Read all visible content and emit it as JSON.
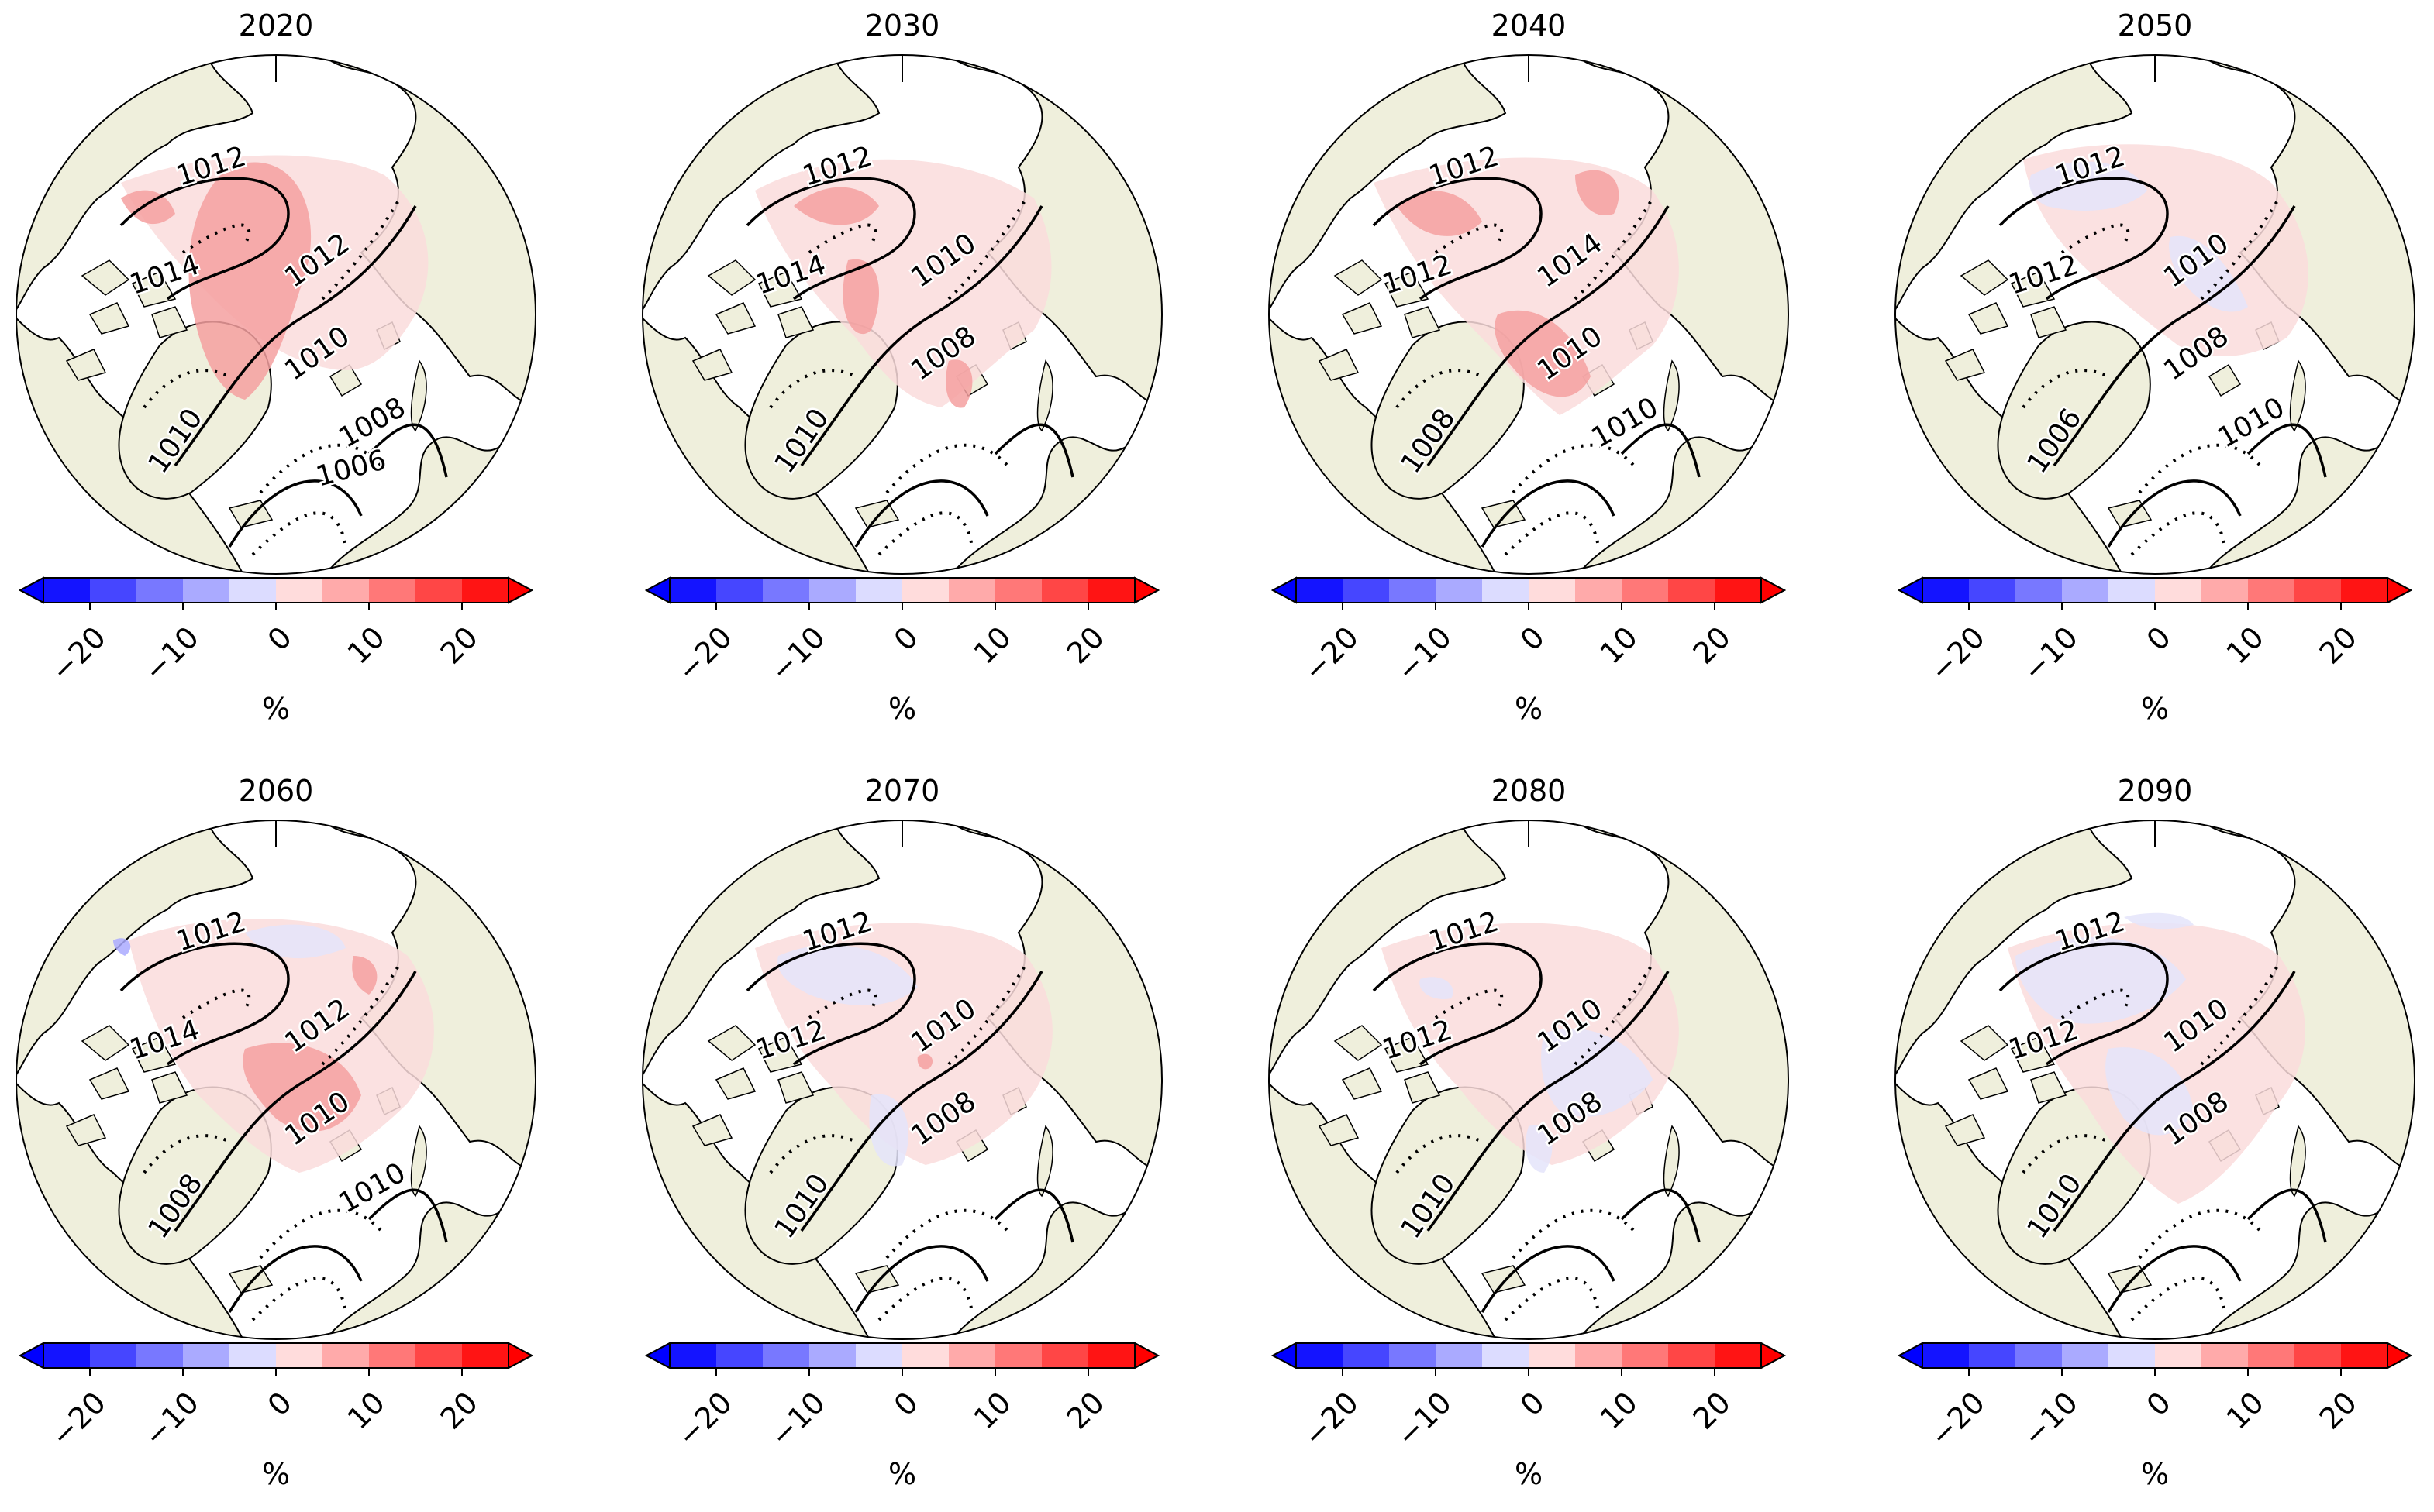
{
  "figure": {
    "panels": [
      {
        "title": "2020",
        "labels": [
          "1012",
          "1014",
          "1012",
          "1010",
          "1010",
          "1008",
          "1006"
        ]
      },
      {
        "title": "2030",
        "labels": [
          "1012",
          "1014",
          "1010",
          "1008",
          "1010"
        ]
      },
      {
        "title": "2040",
        "labels": [
          "1012",
          "1012",
          "1014",
          "1010",
          "1008",
          "1010"
        ]
      },
      {
        "title": "2050",
        "labels": [
          "1012",
          "1012",
          "1010",
          "1008",
          "1006",
          "1010"
        ]
      },
      {
        "title": "2060",
        "labels": [
          "1012",
          "1014",
          "1012",
          "1010",
          "1008",
          "1010"
        ]
      },
      {
        "title": "2070",
        "labels": [
          "1012",
          "1012",
          "1010",
          "1008",
          "1010"
        ]
      },
      {
        "title": "2080",
        "labels": [
          "1012",
          "1012",
          "1010",
          "1008",
          "1010"
        ]
      },
      {
        "title": "2090",
        "labels": [
          "1012",
          "1012",
          "1010",
          "1008",
          "1010"
        ]
      }
    ],
    "colorbar": {
      "unit": "%",
      "ticks": [
        "−20",
        "−10",
        "0",
        "10",
        "20"
      ],
      "tick_values": [
        -20,
        -10,
        0,
        10,
        20
      ],
      "range": [
        -25,
        25
      ],
      "colors": [
        "#1414ff",
        "#4646ff",
        "#7878ff",
        "#aaaaff",
        "#dcdcff",
        "#ffdcdc",
        "#ffaaaa",
        "#ff7878",
        "#ff4646",
        "#ff1414"
      ]
    },
    "colors": {
      "land": "#efefdc",
      "positive_shade": "#fadcdc",
      "positive_strong": "#f5a0a0",
      "negative_shade": "#e4e4fa"
    }
  }
}
